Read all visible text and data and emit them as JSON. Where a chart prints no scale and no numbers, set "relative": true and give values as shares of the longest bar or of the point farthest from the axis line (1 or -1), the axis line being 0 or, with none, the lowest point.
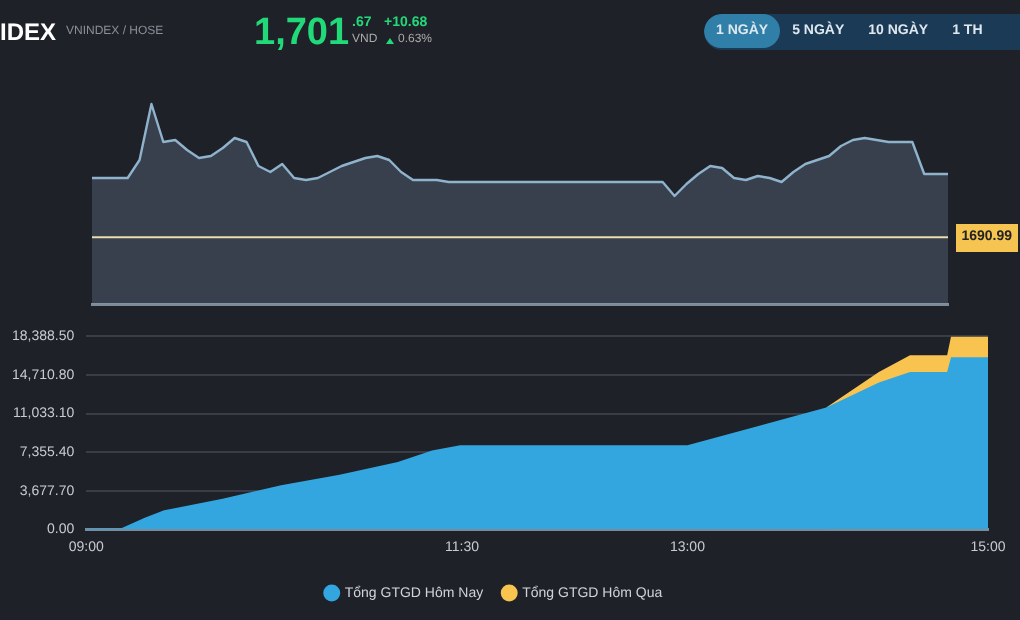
{
  "chart_data": [
    {
      "type": "other",
      "title": "IDEX",
      "subtitle": "VNINDEX / HOSE",
      "annotations": [
        "1,701",
        ".67",
        "VND",
        "+10.68",
        "0.63%",
        "1 NGÀY",
        "5 NGÀY",
        "10 NGÀY",
        "1 TH"
      ]
    },
    {
      "type": "area",
      "relative": true,
      "tick_labels": false,
      "categories": [
        null,
        null,
        null,
        null,
        null,
        null,
        null,
        null,
        null,
        null,
        null,
        null,
        null,
        null,
        null,
        null,
        null,
        null,
        null,
        null,
        null,
        null,
        null,
        null,
        null,
        null,
        null,
        null,
        null,
        null,
        null,
        null,
        null,
        null,
        null,
        null,
        null,
        null,
        null,
        null,
        null,
        null,
        null,
        null,
        null,
        null,
        null,
        null,
        null,
        null,
        null,
        null,
        null,
        null,
        null,
        null,
        null,
        null,
        null,
        null,
        null,
        null,
        null,
        null,
        null,
        null,
        null,
        null,
        null,
        null,
        null,
        null,
        null
      ],
      "series": [
        {
          "color": "#8fb3cc",
          "values": [
            0.63,
            0.63,
            0.63,
            0.63,
            0.72,
            1.0,
            0.81,
            0.82,
            0.77,
            0.73,
            0.74,
            0.78,
            0.83,
            0.81,
            0.69,
            0.66,
            0.7,
            0.63,
            0.62,
            0.63,
            0.66,
            0.69,
            0.71,
            0.73,
            0.74,
            0.72,
            0.66,
            0.62,
            0.62,
            0.62,
            0.61,
            0.61,
            0.61,
            0.61,
            0.61,
            0.61,
            0.61,
            0.61,
            0.61,
            0.61,
            0.61,
            0.61,
            0.61,
            0.61,
            0.61,
            0.61,
            0.61,
            0.61,
            0.61,
            0.54,
            0.6,
            0.65,
            0.69,
            0.68,
            0.63,
            0.62,
            0.64,
            0.63,
            0.61,
            0.66,
            0.7,
            0.72,
            0.74,
            0.79,
            0.82,
            0.83,
            0.82,
            0.81,
            0.81,
            0.81,
            0.65,
            0.65,
            0.65
          ]
        }
      ],
      "ref_lines": [
        {
          "axis": "y",
          "value": 0.334,
          "color": "#e9dcae"
        }
      ],
      "annotations": [
        "1690.99"
      ]
    },
    {
      "type": "area",
      "xlim": [
        9,
        15
      ],
      "ylim": [
        0,
        18388.5
      ],
      "xticks": [
        {
          "value": 9,
          "label": "09:00"
        },
        {
          "value": 11.5,
          "label": "11:30"
        },
        {
          "value": 13,
          "label": "13:00"
        },
        {
          "value": 15,
          "label": "15:00"
        }
      ],
      "yticks": [
        {
          "value": 0,
          "label": "0.00"
        },
        {
          "value": 3677.7,
          "label": "3,677.70"
        },
        {
          "value": 7355.4,
          "label": "7,355.40"
        },
        {
          "value": 11033.1,
          "label": "11,033.10"
        },
        {
          "value": 14710.8,
          "label": "14,710.80"
        },
        {
          "value": 18388.5,
          "label": "18,388.50"
        }
      ],
      "grid": "y",
      "legend": "bottom",
      "series": [
        {
          "name": "Tổng GTGD Hôm Nay",
          "color": "#33a6e0",
          "x": [
            9,
            9.233,
            9.389,
            9.518,
            9.907,
            10.296,
            10.685,
            11.073,
            11.3,
            11.488,
            13.0,
            13.924,
            14.274,
            14.481,
            14.728,
            14.754,
            15
          ],
          "values": [
            100,
            100,
            1100,
            1800,
            2900,
            4200,
            5200,
            6400,
            7500,
            8000,
            8000,
            11600,
            14000,
            15000,
            15000,
            16400,
            16400
          ]
        },
        {
          "name": "Tổng GTGD Hôm Qua",
          "color": "#f9c34f",
          "x": [
            13.924,
            14.274,
            14.481,
            14.728,
            14.754,
            15
          ],
          "values": [
            11600,
            15000,
            16600,
            16600,
            18388.5,
            18388.5
          ]
        }
      ]
    }
  ]
}
